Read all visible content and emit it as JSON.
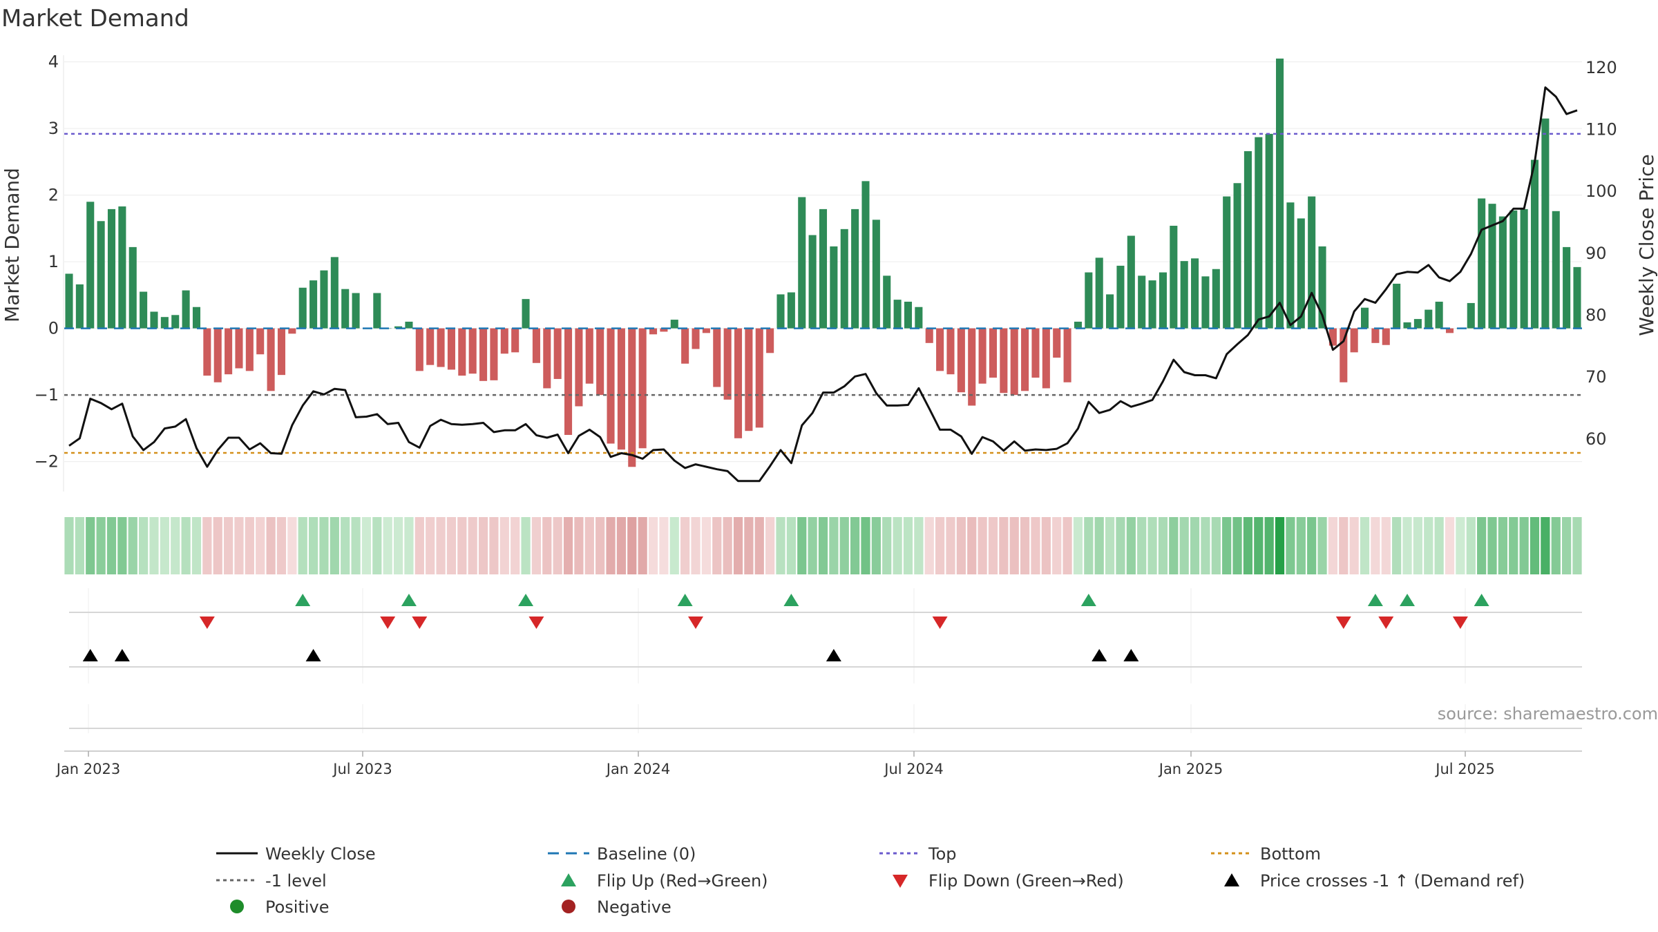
{
  "title": "Market Demand",
  "source_text": "source: sharemaestro.com",
  "colors": {
    "positive": "#2e8b57",
    "negative": "#cd5c5c",
    "close": "#111111",
    "baseline": "#1f77b4",
    "top": "#6a5acd",
    "bottom": "#d4901a",
    "level": "#666666",
    "flip_up": "#2ca25f",
    "flip_down": "#d62728",
    "cross": "#000000"
  },
  "chart_data": {
    "type": "bar",
    "title": "Market Demand",
    "ylabel": "Market Demand",
    "y2label": "Weekly Close Price",
    "ylim": [
      -2.45,
      4.1
    ],
    "y2lim": [
      51.5,
      122
    ],
    "yticks": [
      "−2",
      "−1",
      "0",
      "1",
      "2",
      "3",
      "4"
    ],
    "y2ticks": [
      "60",
      "70",
      "80",
      "90",
      "100",
      "110",
      "120"
    ],
    "x_tick_labels": [
      "Jan 2023",
      "Jul 2023",
      "Jan 2024",
      "Jul 2024",
      "Jan 2025",
      "Jul 2025"
    ],
    "reference_lines": {
      "top": 2.92,
      "bottom": -1.87,
      "minus_one_level": -1,
      "baseline": 0
    },
    "weeks": 143,
    "demand": [
      0.82,
      0.66,
      1.9,
      1.61,
      1.79,
      1.83,
      1.22,
      0.55,
      0.25,
      0.17,
      0.2,
      0.57,
      0.32,
      -0.71,
      -0.81,
      -0.69,
      -0.6,
      -0.64,
      -0.39,
      -0.94,
      -0.7,
      -0.08,
      0.61,
      0.72,
      0.87,
      1.07,
      0.59,
      0.53,
      0.0,
      0.53,
      0.0,
      0.03,
      0.1,
      -0.64,
      -0.55,
      -0.58,
      -0.62,
      -0.71,
      -0.68,
      -0.79,
      -0.78,
      -0.38,
      -0.36,
      0.44,
      -0.52,
      -0.9,
      -0.76,
      -1.6,
      -1.17,
      -0.83,
      -1.0,
      -1.73,
      -1.82,
      -2.08,
      -1.8,
      -0.09,
      -0.05,
      0.13,
      -0.53,
      -0.31,
      -0.07,
      -0.88,
      -1.07,
      -1.65,
      -1.54,
      -1.49,
      -0.37,
      0.51,
      0.54,
      1.97,
      1.4,
      1.79,
      1.23,
      1.49,
      1.79,
      2.21,
      1.63,
      0.79,
      0.43,
      0.4,
      0.32,
      -0.22,
      -0.64,
      -0.69,
      -0.96,
      -1.16,
      -0.83,
      -0.74,
      -0.97,
      -1.0,
      -0.94,
      -0.74,
      -0.9,
      -0.44,
      -0.81,
      0.1,
      0.84,
      1.06,
      0.51,
      0.94,
      1.39,
      0.79,
      0.72,
      0.84,
      1.54,
      1.01,
      1.05,
      0.78,
      0.89,
      1.98,
      2.18,
      2.66,
      2.87,
      2.92,
      4.05,
      1.89,
      1.65,
      1.98,
      1.23,
      -0.26,
      -0.81,
      -0.36,
      0.31,
      -0.22,
      -0.25,
      0.67,
      0.09,
      0.14,
      0.28,
      0.4,
      -0.07,
      0.0,
      0.38,
      1.95,
      1.87,
      1.68,
      1.77,
      1.79,
      2.53,
      3.15,
      1.76,
      1.22,
      0.92
    ],
    "weekly_close": [
      58.9,
      60.1,
      66.5,
      65.8,
      64.8,
      65.7,
      60.4,
      58.2,
      59.5,
      61.7,
      62.0,
      63.2,
      58.5,
      55.5,
      58.2,
      60.2,
      60.2,
      58.3,
      59.3,
      57.7,
      57.6,
      62.2,
      65.4,
      67.7,
      67.2,
      68.1,
      67.9,
      63.5,
      63.6,
      64.0,
      62.4,
      62.6,
      59.5,
      58.6,
      62.1,
      63.1,
      62.4,
      62.3,
      62.4,
      62.6,
      61.1,
      61.4,
      61.4,
      62.4,
      60.6,
      60.2,
      60.7,
      57.7,
      60.5,
      61.5,
      60.3,
      57.1,
      57.7,
      57.4,
      56.8,
      58.2,
      58.3,
      56.5,
      55.3,
      55.9,
      55.5,
      55.1,
      54.8,
      53.2,
      53.2,
      53.2,
      55.6,
      58.2,
      56.1,
      62.2,
      64.2,
      67.5,
      67.5,
      68.5,
      70.1,
      70.5,
      67.4,
      65.4,
      65.4,
      65.5,
      68.2,
      64.9,
      61.5,
      61.5,
      60.4,
      57.6,
      60.3,
      59.6,
      58.1,
      59.6,
      58.1,
      58.3,
      58.2,
      58.4,
      59.3,
      61.7,
      66.0,
      64.2,
      64.7,
      66.1,
      65.2,
      65.7,
      66.3,
      69.3,
      72.8,
      70.8,
      70.3,
      70.3,
      69.8,
      73.7,
      75.3,
      76.8,
      79.3,
      79.8,
      82.0,
      78.4,
      79.8,
      83.6,
      80.0,
      74.4,
      75.8,
      80.6,
      82.6,
      82.0,
      84.2,
      86.6,
      87.0,
      86.9,
      88.1,
      86.1,
      85.5,
      87.0,
      89.9,
      93.8,
      94.5,
      95.2,
      97.2,
      97.2,
      104.7,
      116.8,
      115.3,
      112.5,
      113.1
    ],
    "flip_up_weeks": [
      22,
      32,
      43,
      58,
      68,
      96,
      123,
      126,
      133
    ],
    "flip_down_weeks": [
      13,
      30,
      33,
      44,
      59,
      82,
      120,
      124,
      131
    ],
    "price_cross_weeks": [
      2,
      5,
      23,
      72,
      97,
      100
    ]
  },
  "legend": [
    {
      "label": "Weekly Close",
      "marker": "solid-line"
    },
    {
      "label": "Baseline (0)",
      "marker": "dashed-line"
    },
    {
      "label": "Top",
      "marker": "dotted-line"
    },
    {
      "label": "Bottom",
      "marker": "dotted-line"
    },
    {
      "label": "-1 level",
      "marker": "dotted-line"
    },
    {
      "label": "Flip Up (Red→Green)",
      "marker": "triangle-up"
    },
    {
      "label": "Flip Down (Green→Red)",
      "marker": "triangle-down"
    },
    {
      "label": "Price crosses -1 ↑ (Demand ref)",
      "marker": "triangle-up"
    },
    {
      "label": "Positive",
      "marker": "circle"
    },
    {
      "label": "Negative",
      "marker": "circle"
    }
  ]
}
